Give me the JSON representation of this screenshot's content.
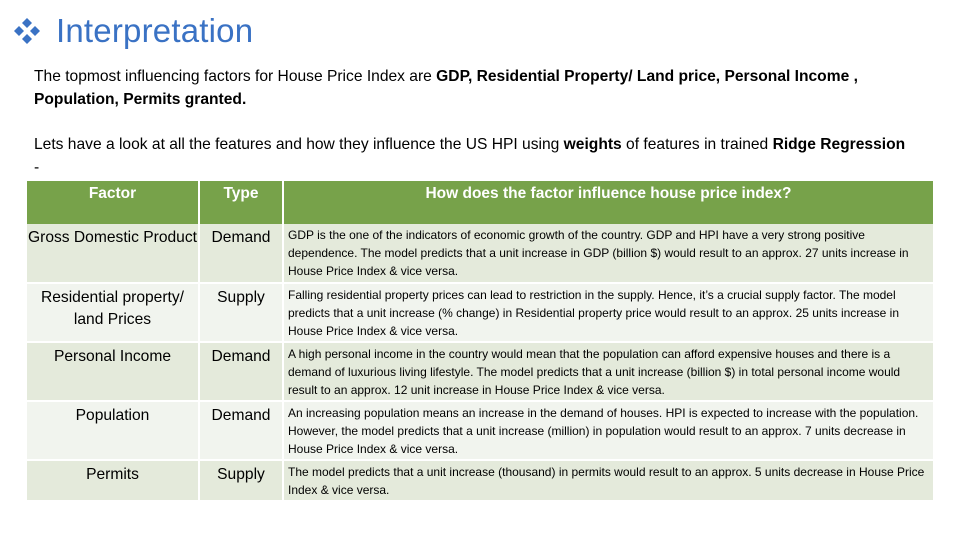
{
  "header": {
    "title": "Interpretation",
    "bullet_icon": "diamond-cluster-icon",
    "accent_color": "#3a72c4"
  },
  "intro": {
    "p1_text": "The topmost influencing factors for House Price Index are ",
    "p1_bold": "GDP, Residential Property/ Land price, Personal Income , Population, Permits granted.",
    "p2_text1": "Lets have a look at all the features and how they influence the US HPI using ",
    "p2_bold1": "weights",
    "p2_text2": " of features in trained ",
    "p2_bold2": "Ridge Regression",
    "p2_text3": " -"
  },
  "table": {
    "header_color": "#77a24a",
    "columns": [
      "Factor",
      "Type",
      "How does the factor influence house price index?"
    ],
    "rows": [
      {
        "factor": "Gross Domestic Product",
        "type": "Demand",
        "description": "GDP is the one of the indicators of economic growth of the country. GDP and HPI have a very strong positive dependence. The model predicts that a unit increase in GDP (billion $) would result to an approx.  27 units increase in House Price Index & vice versa."
      },
      {
        "factor": "Residential property/ land Prices",
        "type": "Supply",
        "description": "Falling residential property prices can lead to restriction in the supply. Hence, it’s a crucial supply factor. The model predicts that a unit increase (%  change) in Residential property price would result to an approx. 25 units increase in House Price Index & vice versa."
      },
      {
        "factor": "Personal Income",
        "type": "Demand",
        "description": "A high personal income in the country would mean that the population can afford expensive houses and there is a demand of luxurious living lifestyle. The model predicts that a unit increase (billion $) in total personal income would result to an approx. 12 unit increase in House Price Index & vice versa."
      },
      {
        "factor": "Population",
        "type": "Demand",
        "description": "An increasing population means an increase in the demand of houses. HPI is expected to increase with the population. However, the model predicts that a unit increase (million) in population would result to an approx. 7 units decrease in House Price Index & vice versa."
      },
      {
        "factor": "Permits",
        "type": "Supply",
        "description": "The model predicts that a unit increase (thousand) in permits would result to an approx. 5 units decrease in House Price Index & vice versa."
      }
    ]
  }
}
